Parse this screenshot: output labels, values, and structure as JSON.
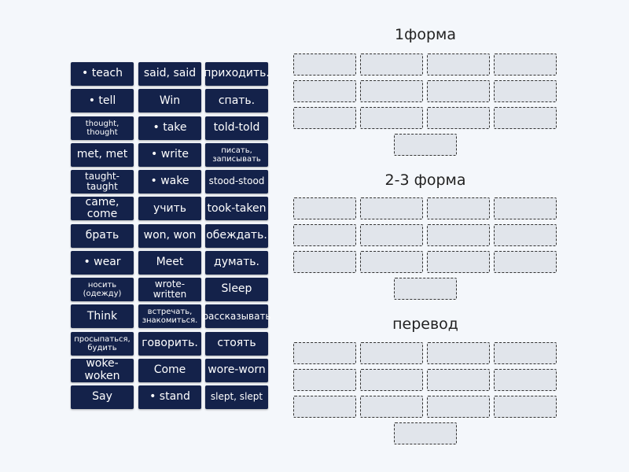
{
  "tiles": [
    [
      "• teach",
      "said, said",
      "приходить."
    ],
    [
      "• tell",
      "Win",
      "спать."
    ],
    [
      "thought, thought",
      "• take",
      "told-told"
    ],
    [
      "met, met",
      "• write",
      "писать, записывать"
    ],
    [
      "taught-taught",
      "• wake",
      "stood-stood"
    ],
    [
      "came, come",
      "учить",
      "took-taken"
    ],
    [
      "брать",
      "won, won",
      "обеждать."
    ],
    [
      "• wear",
      "Meet",
      "думать."
    ],
    [
      "носить (одежду)",
      "wrote-written",
      "Sleep"
    ],
    [
      "Think",
      "встречать, знакомиться.",
      "рассказывать"
    ],
    [
      "просыпаться, будить",
      "говорить.",
      "стоять"
    ],
    [
      "woke-woken",
      "Come",
      "wore-worn"
    ],
    [
      "Say",
      "• stand",
      "slept, slept"
    ]
  ],
  "groups": [
    {
      "title": "1форма"
    },
    {
      "title": "2-3 форма"
    },
    {
      "title": "перевод"
    }
  ]
}
